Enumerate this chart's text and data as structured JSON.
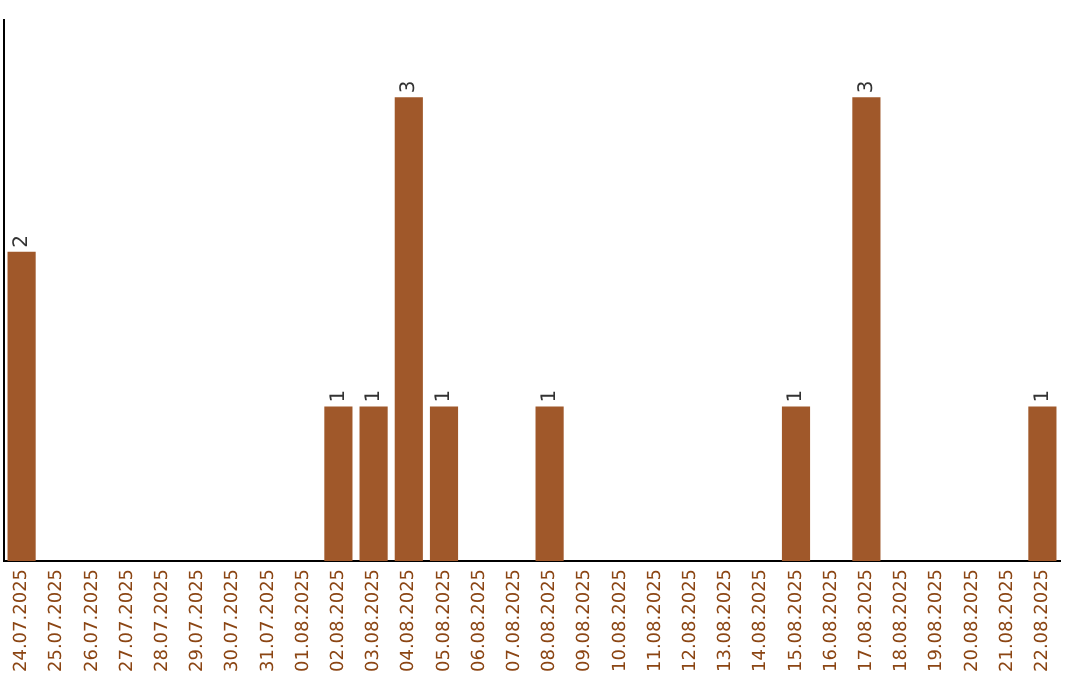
{
  "chart_data": {
    "type": "bar",
    "categories": [
      "24.07.2025",
      "25.07.2025",
      "26.07.2025",
      "27.07.2025",
      "28.07.2025",
      "29.07.2025",
      "30.07.2025",
      "31.07.2025",
      "01.08.2025",
      "02.08.2025",
      "03.08.2025",
      "04.08.2025",
      "05.08.2025",
      "06.08.2025",
      "07.08.2025",
      "08.08.2025",
      "09.08.2025",
      "10.08.2025",
      "11.08.2025",
      "12.08.2025",
      "13.08.2025",
      "14.08.2025",
      "15.08.2025",
      "16.08.2025",
      "17.08.2025",
      "18.08.2025",
      "19.08.2025",
      "20.08.2025",
      "21.08.2025",
      "22.08.2025"
    ],
    "values": [
      2,
      0,
      0,
      0,
      0,
      0,
      0,
      0,
      0,
      1,
      1,
      3,
      1,
      0,
      0,
      1,
      0,
      0,
      0,
      0,
      0,
      0,
      1,
      0,
      3,
      0,
      0,
      0,
      0,
      1
    ],
    "value_labels": [
      "2",
      null,
      null,
      null,
      null,
      null,
      null,
      null,
      null,
      "1",
      "1",
      "3",
      "1",
      null,
      null,
      "1",
      null,
      null,
      null,
      null,
      null,
      null,
      "1",
      null,
      "3",
      null,
      null,
      null,
      null,
      "1"
    ],
    "color": "#a0582a",
    "grid": false,
    "legend": false
  }
}
